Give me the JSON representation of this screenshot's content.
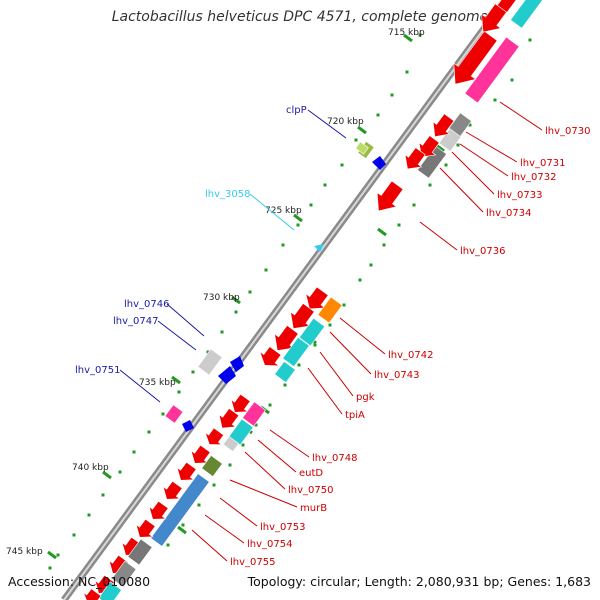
{
  "title": "Lactobacillus helveticus DPC 4571, complete genome",
  "footer": {
    "accession": "Accession: NC_010080",
    "summary": "Topology: circular; Length: 2,080,931 bp; Genes: 1,683"
  },
  "ticks": [
    "715 kbp",
    "720 kbp",
    "725 kbp",
    "730 kbp",
    "735 kbp",
    "740 kbp",
    "745 kbp"
  ],
  "labels_right": [
    {
      "text": "lhv_0730",
      "color": "#cc0000"
    },
    {
      "text": "lhv_0731",
      "color": "#cc0000"
    },
    {
      "text": "lhv_0732",
      "color": "#cc0000"
    },
    {
      "text": "lhv_0733",
      "color": "#cc0000"
    },
    {
      "text": "lhv_0734",
      "color": "#cc0000"
    },
    {
      "text": "lhv_0736",
      "color": "#cc0000"
    },
    {
      "text": "lhv_0742",
      "color": "#cc0000"
    },
    {
      "text": "lhv_0743",
      "color": "#cc0000"
    },
    {
      "text": "pgk",
      "color": "#cc0000"
    },
    {
      "text": "tpiA",
      "color": "#cc0000"
    },
    {
      "text": "lhv_0748",
      "color": "#cc0000"
    },
    {
      "text": "eutD",
      "color": "#cc0000"
    },
    {
      "text": "lhv_0750",
      "color": "#cc0000"
    },
    {
      "text": "murB",
      "color": "#cc0000"
    },
    {
      "text": "lhv_0753",
      "color": "#cc0000"
    },
    {
      "text": "lhv_0754",
      "color": "#cc0000"
    },
    {
      "text": "lhv_0755",
      "color": "#cc0000"
    }
  ],
  "labels_left": [
    {
      "text": "clpP",
      "color": "#1a1aaa"
    },
    {
      "text": "lhv_3058",
      "color": "#33ccee"
    },
    {
      "text": "lhv_0746",
      "color": "#1a1aaa"
    },
    {
      "text": "lhv_0747",
      "color": "#1a1aaa"
    },
    {
      "text": "lhv_0751",
      "color": "#1a1aaa"
    }
  ],
  "colors": {
    "cds": "#ee0000",
    "trna": "#ff3399",
    "rrna": "#22cccc",
    "other": "#aaaaaa",
    "minus_strand": "#0000ee",
    "backbone": "#888888"
  }
}
